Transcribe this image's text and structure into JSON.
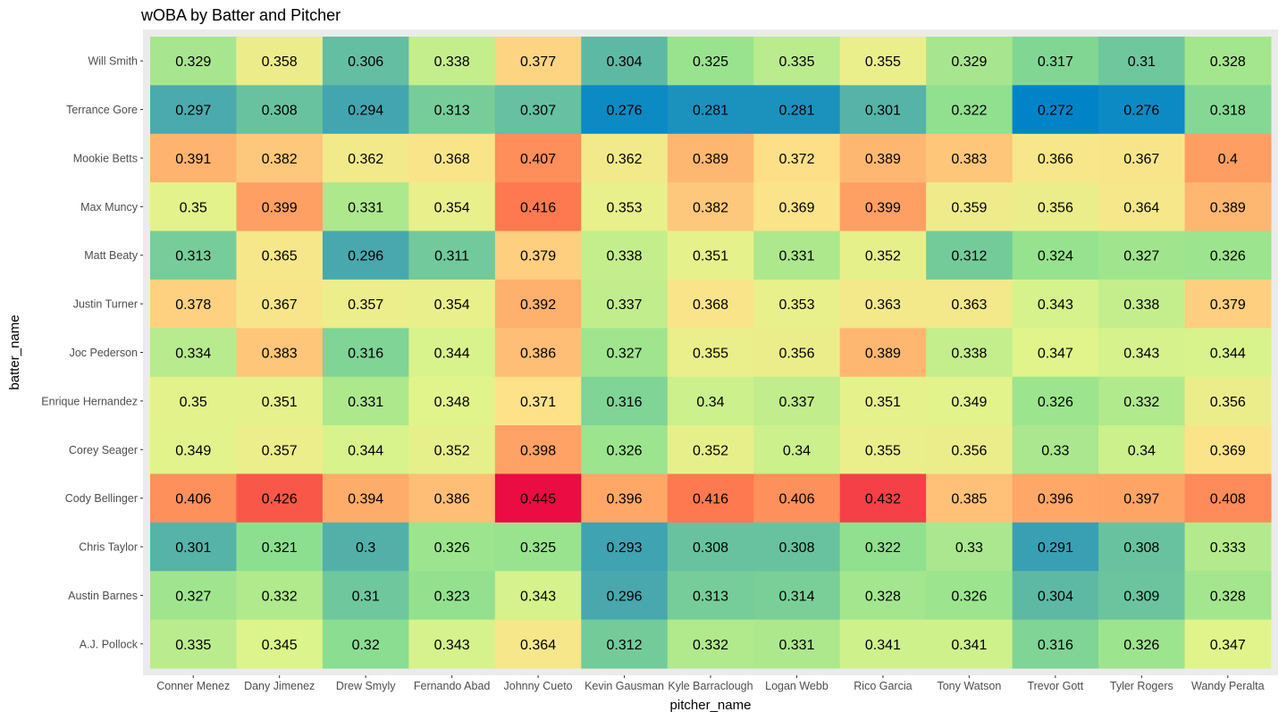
{
  "chart_data": {
    "type": "heatmap",
    "title": "wOBA by Batter and Pitcher",
    "xlabel": "pitcher_name",
    "ylabel": "batter_name",
    "x_categories": [
      "Conner Menez",
      "Dany Jimenez",
      "Drew Smyly",
      "Fernando Abad",
      "Johnny Cueto",
      "Kevin Gausman",
      "Kyle Barraclough",
      "Logan Webb",
      "Rico Garcia",
      "Tony Watson",
      "Trevor Gott",
      "Tyler Rogers",
      "Wandy Peralta"
    ],
    "y_categories": [
      "Will Smith",
      "Terrance Gore",
      "Mookie Betts",
      "Max Muncy",
      "Matt Beaty",
      "Justin Turner",
      "Joc Pederson",
      "Enrique Hernandez",
      "Corey Seager",
      "Cody Bellinger",
      "Chris Taylor",
      "Austin Barnes",
      "A.J. Pollock"
    ],
    "values": [
      [
        "0.329",
        "0.358",
        "0.306",
        "0.338",
        "0.377",
        "0.304",
        "0.325",
        "0.335",
        "0.355",
        "0.329",
        "0.317",
        "0.31",
        "0.328"
      ],
      [
        "0.297",
        "0.308",
        "0.294",
        "0.313",
        "0.307",
        "0.276",
        "0.281",
        "0.281",
        "0.301",
        "0.322",
        "0.272",
        "0.276",
        "0.318"
      ],
      [
        "0.391",
        "0.382",
        "0.362",
        "0.368",
        "0.407",
        "0.362",
        "0.389",
        "0.372",
        "0.389",
        "0.383",
        "0.366",
        "0.367",
        "0.4"
      ],
      [
        "0.35",
        "0.399",
        "0.331",
        "0.354",
        "0.416",
        "0.353",
        "0.382",
        "0.369",
        "0.399",
        "0.359",
        "0.356",
        "0.364",
        "0.389"
      ],
      [
        "0.313",
        "0.365",
        "0.296",
        "0.311",
        "0.379",
        "0.338",
        "0.351",
        "0.331",
        "0.352",
        "0.312",
        "0.324",
        "0.327",
        "0.326"
      ],
      [
        "0.378",
        "0.367",
        "0.357",
        "0.354",
        "0.392",
        "0.337",
        "0.368",
        "0.353",
        "0.363",
        "0.363",
        "0.343",
        "0.338",
        "0.379"
      ],
      [
        "0.334",
        "0.383",
        "0.316",
        "0.344",
        "0.386",
        "0.327",
        "0.355",
        "0.356",
        "0.389",
        "0.338",
        "0.347",
        "0.343",
        "0.344"
      ],
      [
        "0.35",
        "0.351",
        "0.331",
        "0.348",
        "0.371",
        "0.316",
        "0.34",
        "0.337",
        "0.351",
        "0.349",
        "0.326",
        "0.332",
        "0.356"
      ],
      [
        "0.349",
        "0.357",
        "0.344",
        "0.352",
        "0.398",
        "0.326",
        "0.352",
        "0.34",
        "0.355",
        "0.356",
        "0.33",
        "0.34",
        "0.369"
      ],
      [
        "0.406",
        "0.426",
        "0.394",
        "0.386",
        "0.445",
        "0.396",
        "0.416",
        "0.406",
        "0.432",
        "0.385",
        "0.396",
        "0.397",
        "0.408"
      ],
      [
        "0.301",
        "0.321",
        "0.3",
        "0.326",
        "0.325",
        "0.293",
        "0.308",
        "0.308",
        "0.322",
        "0.33",
        "0.291",
        "0.308",
        "0.333"
      ],
      [
        "0.327",
        "0.332",
        "0.31",
        "0.323",
        "0.343",
        "0.296",
        "0.313",
        "0.314",
        "0.328",
        "0.326",
        "0.304",
        "0.309",
        "0.328"
      ],
      [
        "0.335",
        "0.345",
        "0.32",
        "0.343",
        "0.364",
        "0.312",
        "0.332",
        "0.331",
        "0.341",
        "0.341",
        "0.316",
        "0.326",
        "0.347"
      ]
    ],
    "color_scale": {
      "name": "Spectral",
      "min": 0.272,
      "max": 0.445,
      "stops": [
        "#0084c8",
        "#4aa9ad",
        "#8ee08f",
        "#dff58b",
        "#fde28a",
        "#fea868",
        "#fe6f4a",
        "#ea0c43"
      ]
    },
    "panel_background": "#ebebeb",
    "grid": true,
    "legend": "none"
  }
}
